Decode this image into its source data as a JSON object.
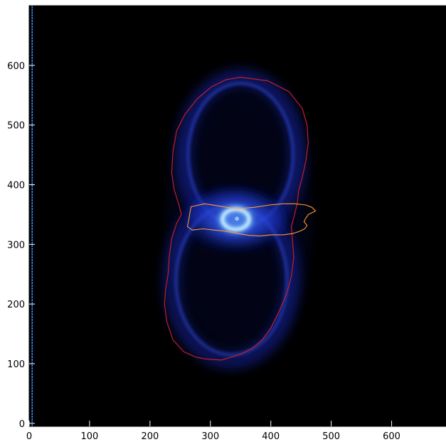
{
  "chart_data": {
    "type": "heatmap",
    "title": "",
    "xlabel": "",
    "ylabel": "",
    "xlim": [
      0,
      690
    ],
    "ylim": [
      -5,
      700
    ],
    "x_ticks": [
      0,
      100,
      200,
      300,
      400,
      500,
      600
    ],
    "y_ticks": [
      0,
      100,
      200,
      300,
      400,
      500,
      600
    ],
    "x_tick_labels": [
      "0",
      "100",
      "200",
      "300",
      "400",
      "500",
      "600"
    ],
    "y_tick_labels": [
      "0",
      "100",
      "200",
      "300",
      "400",
      "500",
      "600"
    ],
    "grid": false,
    "legend": "none",
    "colors": {
      "background": "#000000",
      "glow": "#1a2fd0",
      "ring": "#e6f4ff",
      "outer_contour": "#d42020",
      "inner_contour": "#ff9a2a",
      "edge_line": "#3a8aff"
    },
    "contours": [
      {
        "color": "#d42020",
        "points": [
          [
            350,
            580
          ],
          [
            395,
            574
          ],
          [
            430,
            556
          ],
          [
            452,
            528
          ],
          [
            460,
            500
          ],
          [
            462,
            470
          ],
          [
            458,
            440
          ],
          [
            452,
            412
          ],
          [
            446,
            390
          ],
          [
            444,
            370
          ],
          [
            438,
            345
          ],
          [
            434,
            330
          ],
          [
            436,
            305
          ],
          [
            438,
            278
          ],
          [
            434,
            246
          ],
          [
            426,
            216
          ],
          [
            414,
            188
          ],
          [
            400,
            160
          ],
          [
            386,
            140
          ],
          [
            370,
            126
          ],
          [
            350,
            116
          ],
          [
            334,
            111
          ],
          [
            318,
            106
          ],
          [
            304,
            107
          ],
          [
            292,
            108
          ],
          [
            276,
            111
          ],
          [
            256,
            120
          ],
          [
            238,
            140
          ],
          [
            228,
            170
          ],
          [
            224,
            200
          ],
          [
            226,
            225
          ],
          [
            230,
            250
          ],
          [
            232,
            280
          ],
          [
            236,
            310
          ],
          [
            244,
            335
          ],
          [
            252,
            350
          ],
          [
            248,
            366
          ],
          [
            240,
            392
          ],
          [
            236,
            420
          ],
          [
            238,
            455
          ],
          [
            244,
            490
          ],
          [
            258,
            518
          ],
          [
            278,
            544
          ],
          [
            302,
            564
          ],
          [
            326,
            576
          ],
          [
            350,
            580
          ]
        ]
      },
      {
        "color": "#ff9a2a",
        "points": [
          [
            268,
            363
          ],
          [
            290,
            368
          ],
          [
            310,
            365
          ],
          [
            328,
            362
          ],
          [
            348,
            360
          ],
          [
            372,
            362
          ],
          [
            398,
            366
          ],
          [
            420,
            368
          ],
          [
            440,
            368
          ],
          [
            458,
            366
          ],
          [
            468,
            362
          ],
          [
            474,
            356
          ],
          [
            462,
            350
          ],
          [
            458,
            344
          ],
          [
            455,
            338
          ],
          [
            460,
            332
          ],
          [
            456,
            326
          ],
          [
            448,
            322
          ],
          [
            436,
            318
          ],
          [
            420,
            316
          ],
          [
            400,
            316
          ],
          [
            382,
            314
          ],
          [
            364,
            315
          ],
          [
            346,
            318
          ],
          [
            326,
            322
          ],
          [
            306,
            324
          ],
          [
            288,
            326
          ],
          [
            270,
            324
          ],
          [
            262,
            330
          ],
          [
            264,
            340
          ],
          [
            266,
            352
          ],
          [
            268,
            363
          ]
        ]
      }
    ],
    "bright_ring": {
      "x": 342,
      "y": 342,
      "rx": 22,
      "ry": 17
    },
    "edge_line_x": 5
  }
}
